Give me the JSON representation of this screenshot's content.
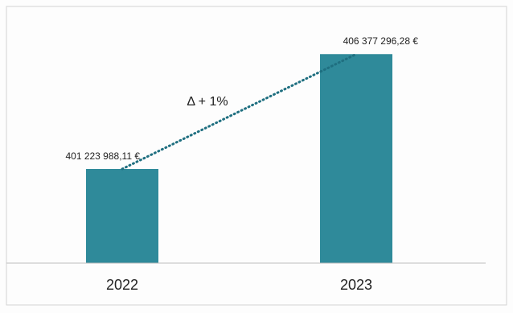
{
  "chart_data": {
    "type": "bar",
    "categories": [
      "2022",
      "2023"
    ],
    "values": [
      401223988.11,
      406377296.28
    ],
    "value_labels": [
      "401 223 988,11 €",
      "406 377 296,28 €"
    ],
    "annotation": "Δ + 1%",
    "trendline": "dotted",
    "colors": {
      "bar": "#2f8a9a",
      "trendline": "#1f6f80"
    },
    "grid": false,
    "legend": "none",
    "ylim": [
      397000000,
      407000000
    ]
  }
}
